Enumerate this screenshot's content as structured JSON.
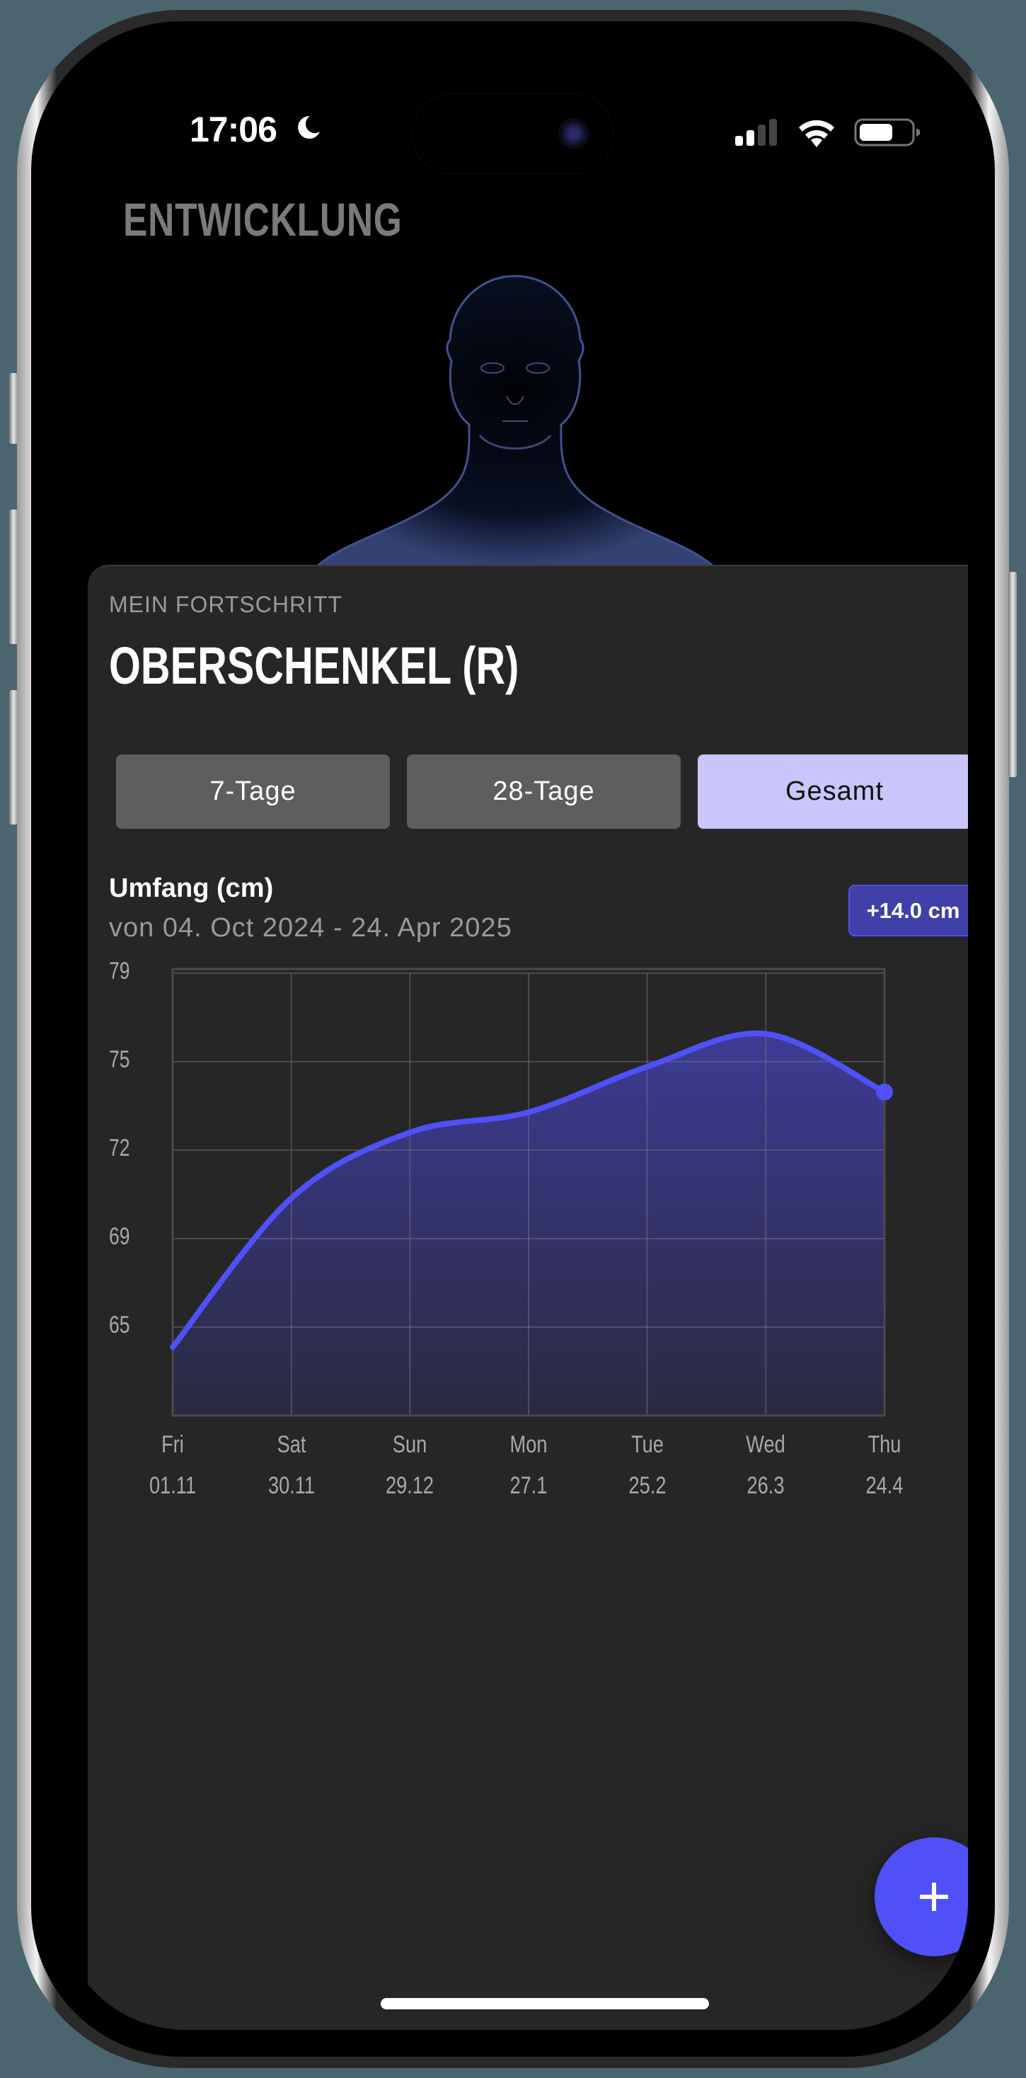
{
  "status_bar": {
    "time": "17:06",
    "focus_icon": "moon-icon",
    "signal_bars_active": 2,
    "signal_bars_total": 4,
    "wifi_icon": "wifi-icon",
    "battery_percent": 60
  },
  "header": {
    "title": "ENTWICKLUNG"
  },
  "card": {
    "eyebrow": "MEIN FORTSCHRITT",
    "title": "OBERSCHENKEL (R)",
    "segments": [
      {
        "label": "7-Tage",
        "active": false
      },
      {
        "label": "28-Tage",
        "active": false
      },
      {
        "label": "Gesamt",
        "active": true
      }
    ],
    "metric_label": "Umfang (cm)",
    "date_range": "von 04. Oct 2024 - 24. Apr 2025",
    "change_badge": "+14.0 cm"
  },
  "fab": {
    "icon": "plus-icon"
  },
  "colors": {
    "accent": "#5050f8",
    "badge_bg": "#4140a8",
    "active_segment": "#c8c6fb",
    "card_bg": "#262626",
    "segment_bg": "#5e5e5e"
  },
  "chart_data": {
    "type": "area",
    "title": "Umfang (cm)",
    "subtitle": "von 04. Oct 2024 - 24. Apr 2025",
    "xlabel": "",
    "ylabel": "",
    "categories": [
      "Fri 01.11",
      "Sat 30.11",
      "Sun 29.12",
      "Mon 27.1",
      "Tue 25.2",
      "Wed 26.3",
      "Thu 24.4"
    ],
    "x_days": [
      "Fri",
      "Sat",
      "Sun",
      "Mon",
      "Tue",
      "Wed",
      "Thu"
    ],
    "x_dates": [
      "01.11",
      "30.11",
      "29.12",
      "27.1",
      "25.2",
      "26.3",
      "24.4"
    ],
    "series": [
      {
        "name": "Umfang (cm)",
        "values": [
          64.2,
          70.1,
          72.7,
          73.5,
          75.3,
          76.6,
          74.3
        ],
        "color": "#5050f8"
      }
    ],
    "y_ticks": [
      79,
      75,
      72,
      69,
      65
    ],
    "ylim": [
      61.5,
      79
    ],
    "grid": true,
    "legend": "none",
    "smooth": true,
    "last_point_marker": true
  }
}
